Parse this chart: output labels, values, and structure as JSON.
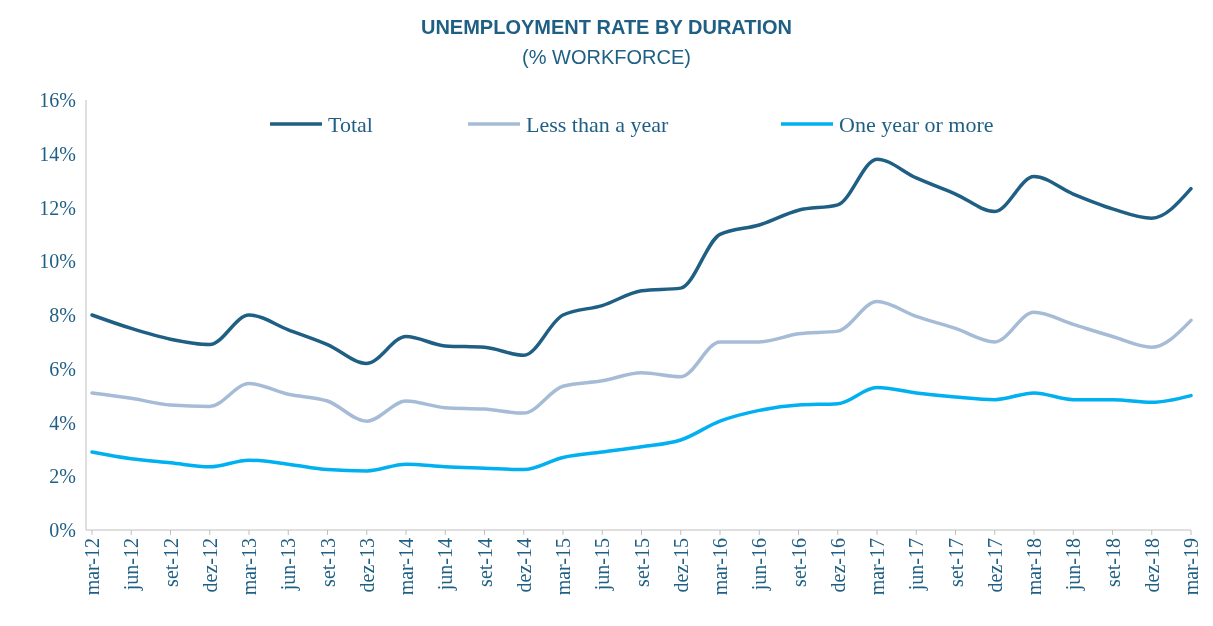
{
  "chart_data": {
    "type": "line",
    "title": "UNEMPLOYMENT RATE BY DURATION",
    "subtitle": "(% WORKFORCE)",
    "categories": [
      "mar-12",
      "jun-12",
      "set-12",
      "dez-12",
      "mar-13",
      "jun-13",
      "set-13",
      "dez-13",
      "mar-14",
      "jun-14",
      "set-14",
      "dez-14",
      "mar-15",
      "jun-15",
      "set-15",
      "dez-15",
      "mar-16",
      "jun-16",
      "set-16",
      "dez-16",
      "mar-17",
      "jun-17",
      "set-17",
      "dez-17",
      "mar-18",
      "jun-18",
      "set-18",
      "dez-18",
      "mar-19"
    ],
    "series": [
      {
        "name": "Total",
        "color": "#1f5f84",
        "values": [
          8.0,
          7.5,
          7.1,
          6.9,
          8.0,
          7.45,
          6.9,
          6.2,
          7.2,
          6.85,
          6.8,
          6.5,
          8.0,
          8.35,
          8.9,
          9.0,
          11.0,
          11.35,
          11.9,
          12.1,
          13.8,
          13.1,
          12.5,
          11.85,
          13.15,
          12.5,
          11.95,
          11.6,
          12.7
        ]
      },
      {
        "name": "Less than a year",
        "color": "#a6bcd6",
        "values": [
          5.1,
          4.9,
          4.65,
          4.6,
          5.45,
          5.05,
          4.8,
          4.05,
          4.8,
          4.55,
          4.5,
          4.35,
          5.35,
          5.55,
          5.85,
          5.7,
          7.0,
          7.0,
          7.3,
          7.4,
          8.5,
          7.95,
          7.5,
          7.0,
          8.1,
          7.65,
          7.2,
          6.8,
          7.8
        ]
      },
      {
        "name": "One year or more",
        "color": "#00b0f0",
        "values": [
          2.9,
          2.65,
          2.5,
          2.35,
          2.6,
          2.45,
          2.25,
          2.2,
          2.45,
          2.35,
          2.3,
          2.25,
          2.7,
          2.9,
          3.1,
          3.35,
          4.05,
          4.45,
          4.65,
          4.7,
          5.3,
          5.1,
          4.95,
          4.85,
          5.1,
          4.85,
          4.85,
          4.75,
          5.0
        ]
      }
    ],
    "ylim": [
      0,
      16
    ],
    "yticks": [
      {
        "value": 0,
        "label": "0%"
      },
      {
        "value": 2,
        "label": "2%"
      },
      {
        "value": 4,
        "label": "4%"
      },
      {
        "value": 6,
        "label": "6%"
      },
      {
        "value": 8,
        "label": "8%"
      },
      {
        "value": 10,
        "label": "10%"
      },
      {
        "value": 12,
        "label": "12%"
      },
      {
        "value": 14,
        "label": "14%"
      },
      {
        "value": 16,
        "label": "16%"
      }
    ],
    "grid": false,
    "legend": "top",
    "marker": "none",
    "line_style": "solid"
  }
}
